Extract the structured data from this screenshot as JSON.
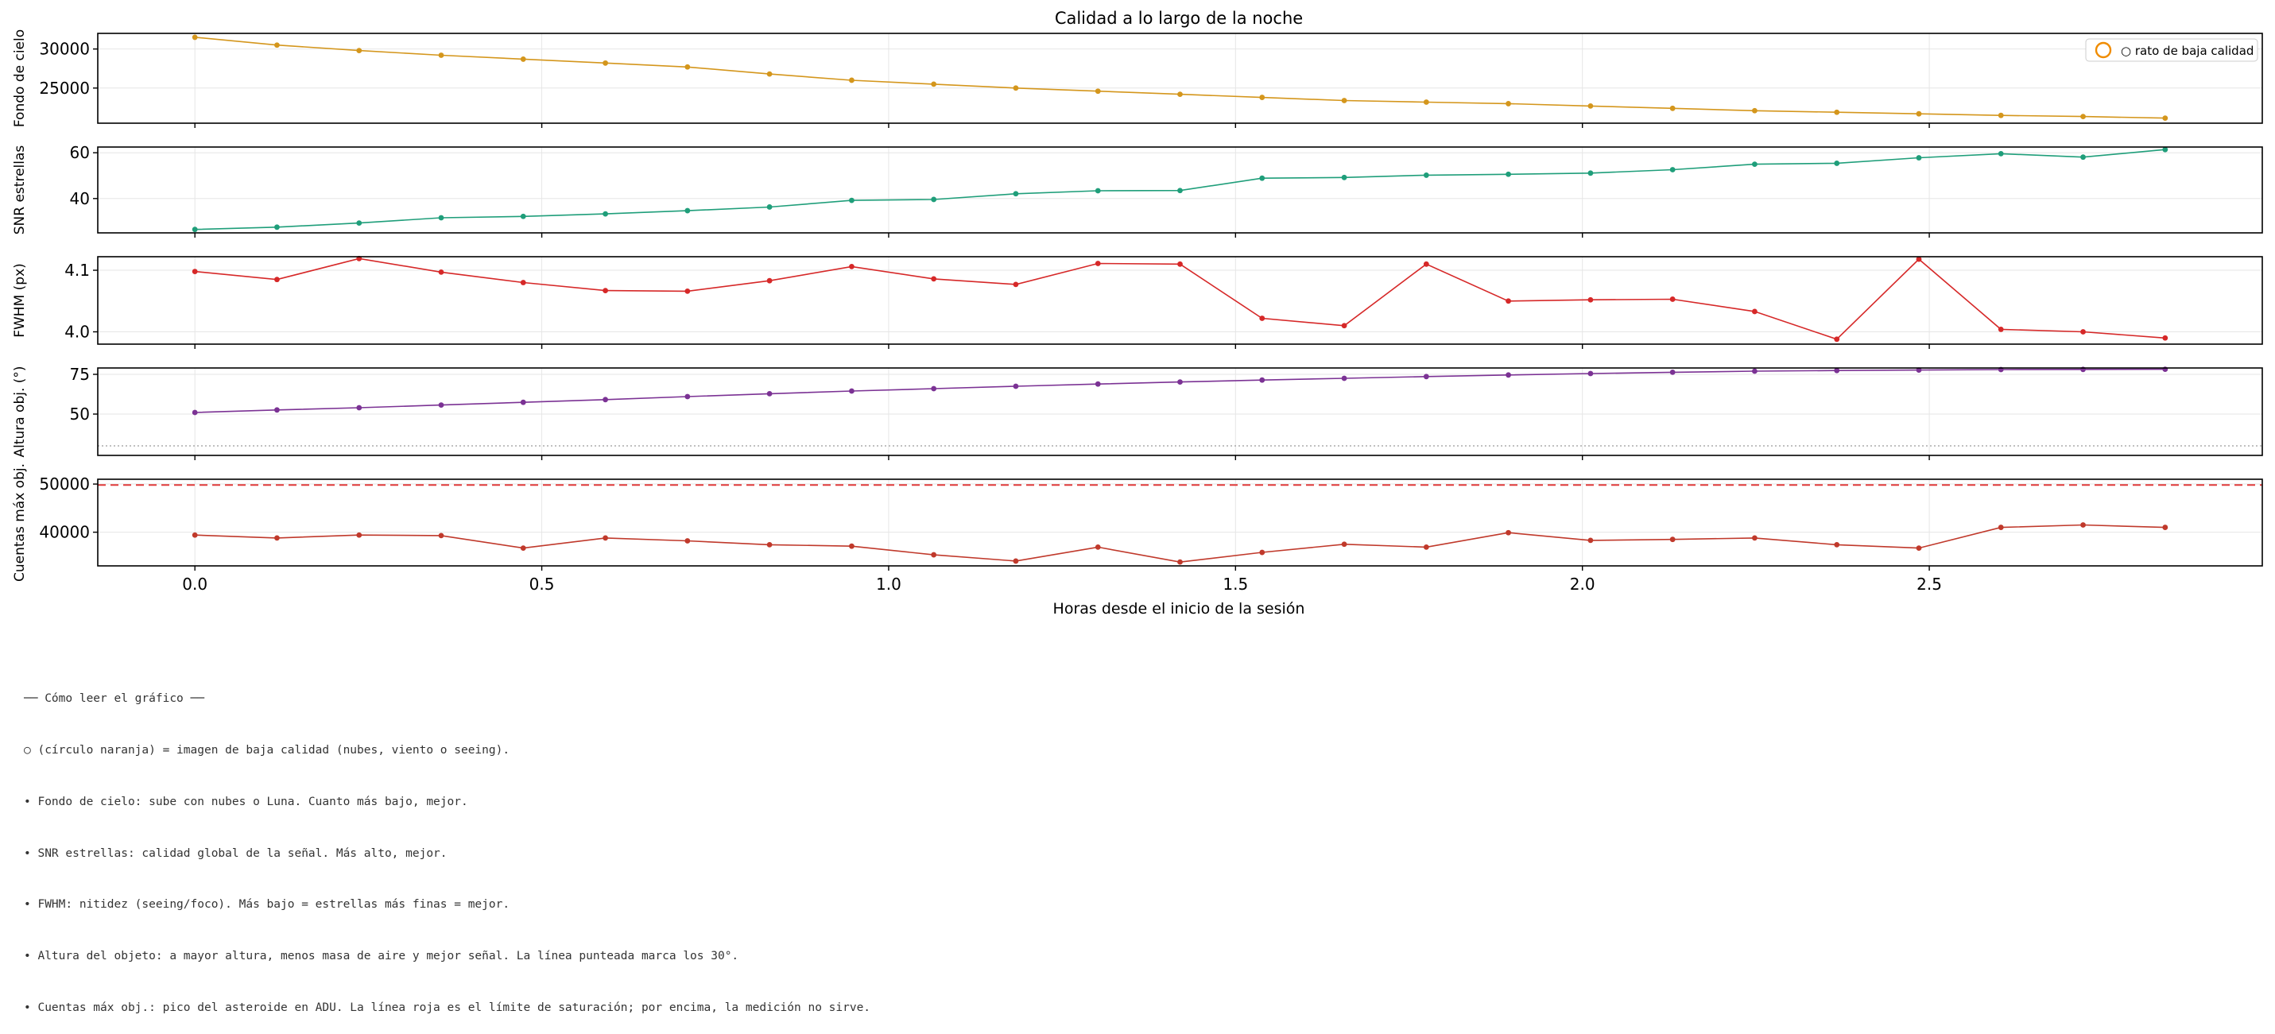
{
  "chart_data": {
    "type": "line",
    "title": "Calidad a lo largo de la noche",
    "xlabel": "Horas desde el inicio de la sesión",
    "x": [
      0.0,
      0.1183,
      0.2367,
      0.355,
      0.4733,
      0.5917,
      0.71,
      0.8283,
      0.9467,
      1.065,
      1.1833,
      1.3017,
      1.42,
      1.5383,
      1.6567,
      1.775,
      1.8933,
      2.0117,
      2.13,
      2.2483,
      2.3667,
      2.485,
      2.6033,
      2.7217,
      2.84
    ],
    "xlim": [
      -0.14,
      2.98
    ],
    "xticks": [
      "0.0",
      "0.5",
      "1.0",
      "1.5",
      "2.0",
      "2.5"
    ],
    "xtick_values": [
      0.0,
      0.5,
      1.0,
      1.5,
      2.0,
      2.5
    ],
    "grid": true,
    "legend": {
      "label": "○ rato de baja calidad",
      "placement": "top-right"
    },
    "panels": [
      {
        "name": "fondo",
        "ylabel": "Fondo de cielo",
        "color": "#d4961c",
        "ylim": [
          20500,
          32000
        ],
        "yticks": [
          "25000",
          "30000"
        ],
        "ytick_values": [
          25000,
          30000
        ],
        "values": [
          31500,
          30500,
          29800,
          29200,
          28700,
          28200,
          27700,
          26800,
          26000,
          25500,
          25000,
          24600,
          24200,
          23800,
          23400,
          23200,
          23000,
          22700,
          22400,
          22100,
          21900,
          21700,
          21500,
          21350,
          21150
        ]
      },
      {
        "name": "snr",
        "ylabel": "SNR estrellas",
        "color": "#1f9e7a",
        "ylim": [
          25,
          62.5
        ],
        "yticks": [
          "40",
          "60"
        ],
        "ytick_values": [
          40,
          60
        ],
        "values": [
          26.5,
          27.5,
          29.3,
          31.6,
          32.2,
          33.3,
          34.7,
          36.3,
          39.2,
          39.6,
          42.1,
          43.4,
          43.5,
          48.9,
          49.2,
          50.2,
          50.6,
          51.1,
          52.6,
          55.0,
          55.4,
          57.8,
          59.6,
          58.1,
          61.4
        ]
      },
      {
        "name": "fwhm",
        "ylabel": "FWHM (px)",
        "color": "#d62828",
        "ylim": [
          3.98,
          4.122
        ],
        "yticks": [
          "4.0",
          "4.1"
        ],
        "ytick_values": [
          4.0,
          4.1
        ],
        "values": [
          4.098,
          4.085,
          4.119,
          4.097,
          4.08,
          4.067,
          4.066,
          4.083,
          4.106,
          4.086,
          4.077,
          4.111,
          4.11,
          4.022,
          4.01,
          4.11,
          4.05,
          4.052,
          4.053,
          4.033,
          3.988,
          4.118,
          4.004,
          4.0,
          3.99
        ]
      },
      {
        "name": "altura",
        "ylabel": "Altura obj. (°)",
        "color": "#7b3294",
        "ylim": [
          24,
          79
        ],
        "yticks": [
          "50",
          "75"
        ],
        "ytick_values": [
          50,
          75
        ],
        "threshold": 30,
        "values": [
          51,
          52.6,
          54,
          55.7,
          57.4,
          59.1,
          61,
          62.8,
          64.5,
          66,
          67.5,
          68.9,
          70.2,
          71.4,
          72.5,
          73.6,
          74.6,
          75.5,
          76.3,
          77,
          77.4,
          77.7,
          78,
          78.1,
          78.2
        ]
      },
      {
        "name": "cuentas",
        "ylabel": "Cuentas máx obj.",
        "color": "#c0392b",
        "ylim": [
          33000,
          51000
        ],
        "yticks": [
          "40000",
          "50000"
        ],
        "ytick_values": [
          40000,
          50000
        ],
        "saturation": 49800,
        "values": [
          39400,
          38800,
          39400,
          39300,
          36700,
          38800,
          38200,
          37400,
          37100,
          35300,
          34000,
          36900,
          33800,
          35800,
          37500,
          36900,
          39900,
          38300,
          38500,
          38800,
          37400,
          36700,
          41000,
          41500,
          41000
        ]
      }
    ]
  },
  "notes": [
    "── Cómo leer el gráfico ──",
    "○ (círculo naranja) = imagen de baja calidad (nubes, viento o seeing).",
    "• Fondo de cielo: sube con nubes o Luna. Cuanto más bajo, mejor.",
    "• SNR estrellas: calidad global de la señal. Más alto, mejor.",
    "• FWHM: nitidez (seeing/foco). Más bajo = estrellas más finas = mejor.",
    "• Altura del objeto: a mayor altura, menos masa de aire y mejor señal. La línea punteada marca los 30°.",
    "• Cuentas máx obj.: pico del asteroide en ADU. La línea roja es el límite de saturación; por encima, la medición no sirve."
  ]
}
